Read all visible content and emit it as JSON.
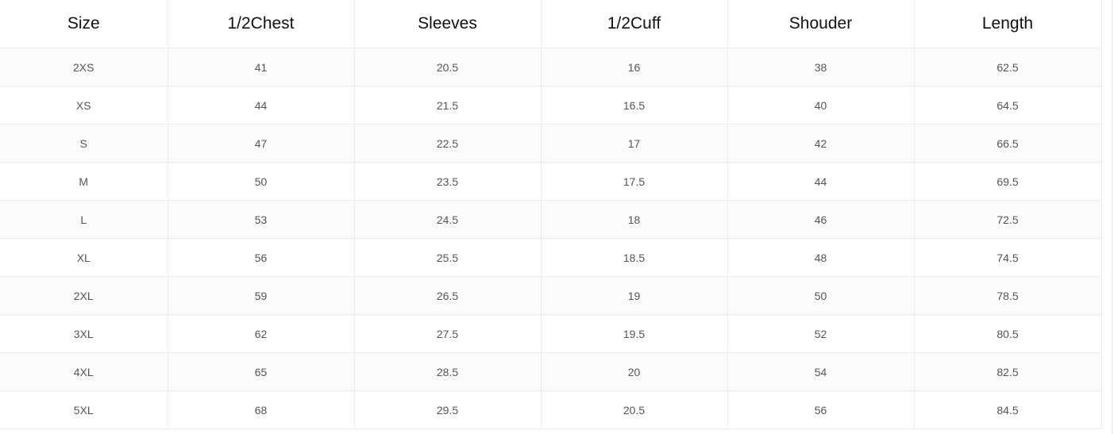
{
  "headers": [
    "Size",
    "1/2Chest",
    "Sleeves",
    "1/2Cuff",
    "Shouder",
    "Length"
  ],
  "rows": [
    [
      "2XS",
      "41",
      "20.5",
      "16",
      "38",
      "62.5"
    ],
    [
      "XS",
      "44",
      "21.5",
      "16.5",
      "40",
      "64.5"
    ],
    [
      "S",
      "47",
      "22.5",
      "17",
      "42",
      "66.5"
    ],
    [
      "M",
      "50",
      "23.5",
      "17.5",
      "44",
      "69.5"
    ],
    [
      "L",
      "53",
      "24.5",
      "18",
      "46",
      "72.5"
    ],
    [
      "XL",
      "56",
      "25.5",
      "18.5",
      "48",
      "74.5"
    ],
    [
      "2XL",
      "59",
      "26.5",
      "19",
      "50",
      "78.5"
    ],
    [
      "3XL",
      "62",
      "27.5",
      "19.5",
      "52",
      "80.5"
    ],
    [
      "4XL",
      "65",
      "28.5",
      "20",
      "54",
      "82.5"
    ],
    [
      "5XL",
      "68",
      "29.5",
      "20.5",
      "56",
      "84.5"
    ]
  ]
}
